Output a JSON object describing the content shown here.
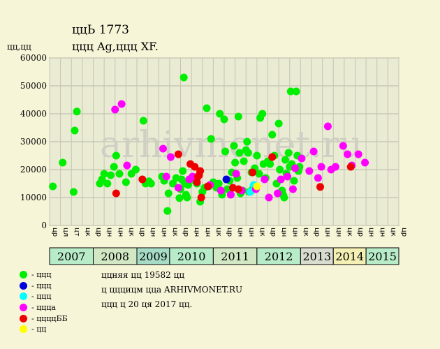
{
  "title": "ццЬ 1773",
  "subtitle": "ццц Ag,ццц XF.",
  "y_unit": "цц,цц",
  "legend": [
    {
      "label": "- ццц",
      "color": "#00ee00"
    },
    {
      "label": "- ццц",
      "color": "#0000dd"
    },
    {
      "label": "- ццц",
      "color": "#00ffff"
    },
    {
      "label": "- ццца",
      "color": "#ff00ff"
    },
    {
      "label": "- ццццББ",
      "color": "#ee0000"
    },
    {
      "label": "- цц",
      "color": "#ffff00"
    }
  ],
  "notes": {
    "line1": "ццняя цц 19582 цц",
    "line2": "ц цццицм цца ARHIVMONET.RU",
    "line3": "ццц ц 20 ця 2017 цц."
  },
  "watermark": "arhivmonet.ru",
  "chart_data": {
    "type": "scatter",
    "ylim": [
      0,
      60000
    ],
    "yticks": [
      0,
      10000,
      20000,
      30000,
      40000,
      50000,
      60000
    ],
    "ytick_labels": [
      "0",
      "10000",
      "20000",
      "30000",
      "40000",
      "50000",
      "60000"
    ],
    "grid": true,
    "x_slots": 32,
    "x_labels": [
      "цр",
      "цл",
      "цт",
      "цк",
      "цр",
      "цн",
      "цн",
      "цк",
      "цр",
      "цн",
      "цн",
      "цк",
      "цр",
      "цн",
      "цн",
      "цк",
      "цр",
      "цн",
      "цн",
      "цк",
      "цр",
      "цн",
      "цн",
      "цк",
      "цр",
      "цн",
      "цн",
      "цк",
      "цр",
      "цн",
      "цн",
      "цк",
      "цр"
    ],
    "years": [
      {
        "label": "2007",
        "start": 0,
        "end": 4,
        "color": "#b8ecc8"
      },
      {
        "label": "2008",
        "start": 4,
        "end": 8,
        "color": "#d2e8c4"
      },
      {
        "label": "2009",
        "start": 8,
        "end": 11,
        "color": "#a6dcc6"
      },
      {
        "label": "2010",
        "start": 11,
        "end": 15,
        "color": "#b8ecc8"
      },
      {
        "label": "2011",
        "start": 15,
        "end": 19,
        "color": "#d2e8c4"
      },
      {
        "label": "2012",
        "start": 19,
        "end": 23,
        "color": "#b8ecc8"
      },
      {
        "label": "2013",
        "start": 23,
        "end": 26,
        "color": "#d8ddd0"
      },
      {
        "label": "2014",
        "start": 26,
        "end": 29,
        "color": "#f4f0b4"
      },
      {
        "label": "2015",
        "start": 29,
        "end": 32,
        "color": "#b8ecc8"
      }
    ],
    "series": [
      {
        "color": "#00ee00",
        "points": [
          [
            0.3,
            14000
          ],
          [
            1.2,
            22500
          ],
          [
            2.2,
            12000
          ],
          [
            2.3,
            34000
          ],
          [
            2.5,
            40800
          ],
          [
            4.6,
            15000
          ],
          [
            4.8,
            16500
          ],
          [
            5.0,
            18500
          ],
          [
            5.3,
            15000
          ],
          [
            5.6,
            18000
          ],
          [
            5.9,
            21000
          ],
          [
            6.1,
            25000
          ],
          [
            6.4,
            18500
          ],
          [
            7.0,
            15500
          ],
          [
            7.5,
            18500
          ],
          [
            7.9,
            20000
          ],
          [
            8.6,
            37500
          ],
          [
            8.8,
            15000
          ],
          [
            9.1,
            15800
          ],
          [
            9.3,
            15000
          ],
          [
            10.3,
            17500
          ],
          [
            10.5,
            16000
          ],
          [
            10.8,
            5200
          ],
          [
            10.9,
            11500
          ],
          [
            11.3,
            15000
          ],
          [
            11.6,
            17000
          ],
          [
            11.9,
            9800
          ],
          [
            12.0,
            13000
          ],
          [
            12.1,
            16500
          ],
          [
            12.2,
            19500
          ],
          [
            12.3,
            53000
          ],
          [
            12.4,
            15000
          ],
          [
            12.5,
            11000
          ],
          [
            12.6,
            10000
          ],
          [
            12.7,
            14500
          ],
          [
            13.0,
            17000
          ],
          [
            13.3,
            16000
          ],
          [
            13.5,
            15000
          ],
          [
            13.8,
            8500
          ],
          [
            14.0,
            12000
          ],
          [
            14.2,
            13500
          ],
          [
            14.4,
            42000
          ],
          [
            14.6,
            14000
          ],
          [
            14.8,
            31000
          ],
          [
            15.0,
            15500
          ],
          [
            15.3,
            13500
          ],
          [
            15.5,
            15000
          ],
          [
            15.6,
            40000
          ],
          [
            15.8,
            11000
          ],
          [
            16.0,
            38000
          ],
          [
            16.1,
            26500
          ],
          [
            16.3,
            13000
          ],
          [
            16.5,
            16000
          ],
          [
            16.7,
            19000
          ],
          [
            16.9,
            28500
          ],
          [
            17.0,
            22500
          ],
          [
            17.2,
            17000
          ],
          [
            17.3,
            39000
          ],
          [
            17.4,
            26000
          ],
          [
            17.5,
            11500
          ],
          [
            17.7,
            12500
          ],
          [
            17.8,
            23000
          ],
          [
            18.0,
            27000
          ],
          [
            18.1,
            30000
          ],
          [
            18.2,
            26000
          ],
          [
            18.3,
            12000
          ],
          [
            18.5,
            19000
          ],
          [
            18.6,
            13000
          ],
          [
            18.8,
            20500
          ],
          [
            19.0,
            25000
          ],
          [
            19.2,
            18500
          ],
          [
            19.3,
            38500
          ],
          [
            19.5,
            40000
          ],
          [
            19.6,
            22000
          ],
          [
            19.8,
            17000
          ],
          [
            20.0,
            23000
          ],
          [
            20.2,
            22000
          ],
          [
            20.4,
            32500
          ],
          [
            20.6,
            25000
          ],
          [
            20.8,
            15000
          ],
          [
            21.0,
            36500
          ],
          [
            21.1,
            20000
          ],
          [
            21.3,
            12500
          ],
          [
            21.4,
            11000
          ],
          [
            21.5,
            10000
          ],
          [
            21.6,
            23500
          ],
          [
            21.7,
            18500
          ],
          [
            21.9,
            26000
          ],
          [
            22.0,
            21000
          ],
          [
            22.1,
            48000
          ],
          [
            22.2,
            22000
          ],
          [
            22.4,
            16000
          ],
          [
            22.6,
            48000
          ],
          [
            22.7,
            25000
          ],
          [
            22.8,
            19500
          ],
          [
            22.9,
            21000
          ]
        ]
      },
      {
        "color": "#0000dd",
        "points": [
          [
            16.2,
            16500
          ]
        ]
      },
      {
        "color": "#00ffff",
        "points": [
          [
            18.4,
            12000
          ],
          [
            18.7,
            14500
          ]
        ]
      },
      {
        "color": "#ff00ff",
        "points": [
          [
            6.0,
            41500
          ],
          [
            6.6,
            43500
          ],
          [
            7.1,
            21500
          ],
          [
            10.4,
            27500
          ],
          [
            10.7,
            17500
          ],
          [
            11.1,
            24500
          ],
          [
            11.8,
            13500
          ],
          [
            12.8,
            16500
          ],
          [
            13.1,
            17500
          ],
          [
            14.7,
            14500
          ],
          [
            15.7,
            12500
          ],
          [
            16.6,
            11000
          ],
          [
            17.1,
            18500
          ],
          [
            17.6,
            12500
          ],
          [
            18.9,
            13000
          ],
          [
            19.7,
            16500
          ],
          [
            20.1,
            10000
          ],
          [
            20.9,
            11500
          ],
          [
            21.2,
            16500
          ],
          [
            21.8,
            17500
          ],
          [
            22.3,
            13000
          ],
          [
            22.5,
            20500
          ],
          [
            23.1,
            24000
          ],
          [
            23.8,
            19500
          ],
          [
            24.2,
            26500
          ],
          [
            24.6,
            17000
          ],
          [
            24.9,
            21000
          ],
          [
            25.5,
            35500
          ],
          [
            25.8,
            20000
          ],
          [
            26.2,
            21000
          ],
          [
            26.9,
            28500
          ],
          [
            27.3,
            25500
          ],
          [
            27.7,
            21500
          ],
          [
            28.3,
            25500
          ],
          [
            28.9,
            22500
          ]
        ]
      },
      {
        "color": "#ee0000",
        "points": [
          [
            6.1,
            11500
          ],
          [
            8.5,
            16500
          ],
          [
            11.8,
            25500
          ],
          [
            12.9,
            22000
          ],
          [
            13.3,
            21000
          ],
          [
            13.5,
            15500
          ],
          [
            13.6,
            17500
          ],
          [
            13.7,
            18000
          ],
          [
            13.8,
            19500
          ],
          [
            13.9,
            10000
          ],
          [
            14.5,
            14000
          ],
          [
            16.8,
            13500
          ],
          [
            17.3,
            13000
          ],
          [
            18.6,
            19000
          ],
          [
            20.4,
            24500
          ],
          [
            24.8,
            13800
          ],
          [
            27.6,
            21000
          ]
        ]
      },
      {
        "color": "#ffff00",
        "points": [
          [
            19.0,
            14000
          ]
        ]
      }
    ]
  }
}
